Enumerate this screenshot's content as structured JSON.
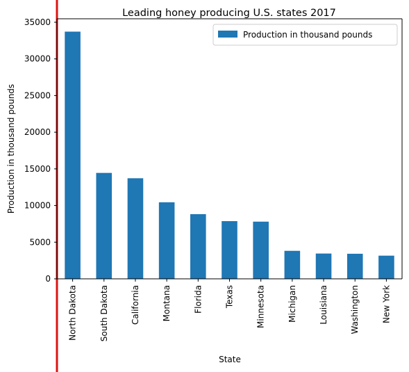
{
  "chart_data": {
    "type": "bar",
    "title": "Leading honey producing U.S. states 2017",
    "xlabel": "State",
    "ylabel": "Production in thousand pounds",
    "categories": [
      "North Dakota",
      "South Dakota",
      "California",
      "Montana",
      "Florida",
      "Texas",
      "Minnesota",
      "Michigan",
      "Louisiana",
      "Washington",
      "New York"
    ],
    "series": [
      {
        "name": "Production in thousand pounds",
        "values": [
          33720,
          14450,
          13720,
          10440,
          8820,
          7870,
          7800,
          3820,
          3450,
          3420,
          3160
        ]
      }
    ],
    "ylim": [
      0,
      35000
    ],
    "yticks": [
      0,
      5000,
      10000,
      15000,
      20000,
      25000,
      30000,
      35000
    ],
    "grid": false,
    "legend_position": "top-right",
    "colors": {
      "bar": "#1f77b4",
      "marker_line": "#dd1111",
      "axis": "#000000",
      "legend_border": "#cccccc"
    }
  }
}
